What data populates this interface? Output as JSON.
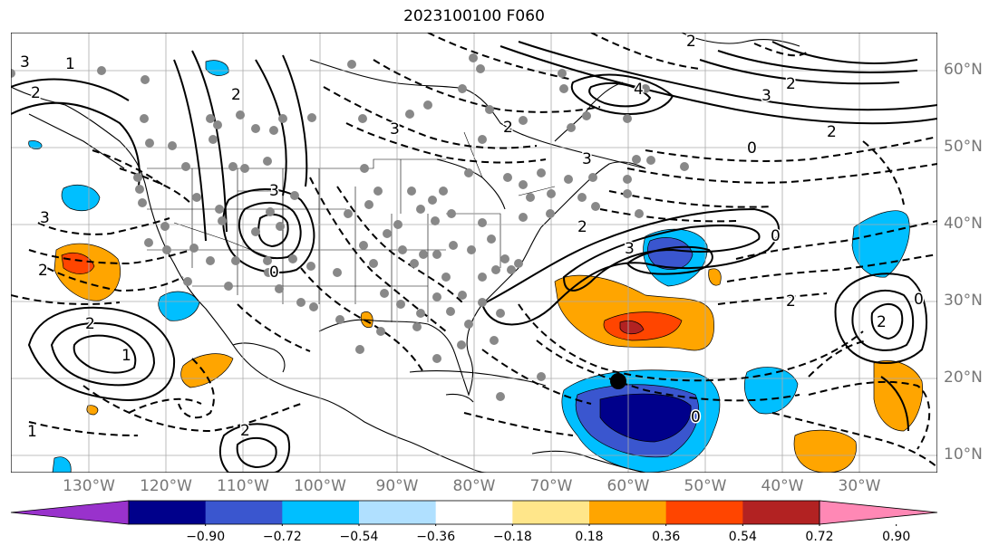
{
  "title": "2023100100 F060",
  "lat_labels": [
    "60°N",
    "50°N",
    "40°N",
    "30°N",
    "20°N",
    "10°N"
  ],
  "lon_labels": [
    "130°W",
    "120°W",
    "110°W",
    "100°W",
    "90°W",
    "80°W",
    "70°W",
    "60°W",
    "50°W",
    "40°W",
    "30°W"
  ],
  "contour_labels": [
    "3",
    "2",
    "1",
    "2",
    "3",
    "2",
    "3",
    "4",
    "3",
    "2",
    "0",
    "2",
    "3",
    "3",
    "2",
    "0",
    "2",
    "3",
    "2",
    "1",
    "0",
    "2",
    "2",
    "1",
    "2",
    "0",
    "0",
    "2"
  ],
  "colorbar": {
    "ticks": [
      "−0.90",
      "−0.72",
      "−0.54",
      "−0.36",
      "−0.18",
      "0.18",
      "0.36",
      "0.54",
      "0.72",
      "0.90"
    ],
    "colors": [
      "#9932cc",
      "#00008b",
      "#3a56cf",
      "#00bfff",
      "#b0e0ff",
      "#ffffff",
      "#ffe68a",
      "#ffa500",
      "#ff4500",
      "#b22222",
      "#ff88b5"
    ]
  },
  "colors": {
    "frame": "#000000",
    "grid": "#aaaaaa",
    "label": "#777777"
  }
}
